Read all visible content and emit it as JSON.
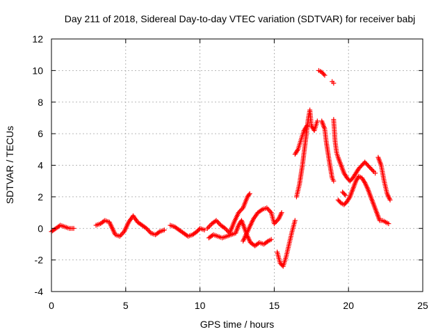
{
  "chart_data": {
    "type": "scatter",
    "title": "Day 211 of 2018, Sidereal Day-to-day VTEC variation (SDTVAR) for receiver babj",
    "xlabel": "GPS time / hours",
    "ylabel": "SDTVAR / TECUs",
    "xlim": [
      0,
      25
    ],
    "ylim": [
      -4,
      12
    ],
    "xticks": [
      0,
      5,
      10,
      15,
      20,
      25
    ],
    "yticks": [
      -4,
      -2,
      0,
      2,
      4,
      6,
      8,
      10,
      12
    ],
    "grid": true,
    "marker": "+",
    "marker_color": "#ff0000",
    "series": [
      {
        "name": "SDTVAR",
        "segments": [
          [
            [
              0.0,
              -0.2
            ],
            [
              0.3,
              0.0
            ],
            [
              0.6,
              0.2
            ],
            [
              0.9,
              0.1
            ],
            [
              1.2,
              0.0
            ],
            [
              1.5,
              0.0
            ]
          ],
          [
            [
              3.0,
              0.2
            ],
            [
              3.3,
              0.3
            ],
            [
              3.6,
              0.5
            ],
            [
              3.9,
              0.4
            ],
            [
              4.1,
              0.0
            ],
            [
              4.3,
              -0.4
            ],
            [
              4.6,
              -0.5
            ],
            [
              4.9,
              -0.2
            ],
            [
              5.2,
              0.4
            ],
            [
              5.5,
              0.8
            ],
            [
              5.8,
              0.4
            ],
            [
              6.1,
              0.2
            ],
            [
              6.4,
              0.0
            ],
            [
              6.7,
              -0.3
            ],
            [
              7.0,
              -0.4
            ],
            [
              7.3,
              -0.2
            ],
            [
              7.6,
              -0.1
            ]
          ],
          [
            [
              8.0,
              0.2
            ],
            [
              8.3,
              0.1
            ],
            [
              8.6,
              -0.1
            ],
            [
              8.9,
              -0.3
            ],
            [
              9.2,
              -0.5
            ],
            [
              9.5,
              -0.4
            ],
            [
              9.8,
              -0.2
            ],
            [
              10.0,
              0.0
            ],
            [
              10.3,
              -0.1
            ]
          ],
          [
            [
              10.5,
              0.0
            ],
            [
              10.8,
              0.3
            ],
            [
              11.1,
              0.5
            ],
            [
              11.4,
              0.2
            ],
            [
              11.7,
              0.0
            ],
            [
              12.0,
              -0.3
            ],
            [
              12.3,
              0.4
            ],
            [
              12.6,
              1.0
            ],
            [
              12.9,
              1.3
            ],
            [
              13.2,
              2.0
            ],
            [
              13.35,
              2.2
            ]
          ],
          [
            [
              10.6,
              -0.6
            ],
            [
              10.9,
              -0.4
            ],
            [
              11.2,
              -0.5
            ],
            [
              11.5,
              -0.6
            ],
            [
              11.8,
              -0.5
            ],
            [
              12.1,
              -0.4
            ],
            [
              12.4,
              -0.3
            ],
            [
              12.6,
              0.2
            ],
            [
              12.8,
              0.5
            ],
            [
              13.0,
              0.0
            ],
            [
              13.2,
              -0.5
            ],
            [
              13.4,
              -0.9
            ],
            [
              13.7,
              -1.1
            ],
            [
              14.0,
              -0.9
            ],
            [
              14.3,
              -1.0
            ],
            [
              14.6,
              -0.8
            ],
            [
              14.8,
              -0.7
            ]
          ],
          [
            [
              12.9,
              -0.8
            ],
            [
              13.1,
              -0.4
            ],
            [
              13.3,
              0.0
            ],
            [
              13.6,
              0.6
            ],
            [
              13.9,
              1.0
            ],
            [
              14.2,
              1.2
            ],
            [
              14.5,
              1.3
            ],
            [
              14.8,
              1.0
            ],
            [
              15.0,
              0.3
            ],
            [
              15.3,
              0.6
            ],
            [
              15.5,
              1.0
            ]
          ],
          [
            [
              15.2,
              -1.5
            ],
            [
              15.4,
              -2.2
            ],
            [
              15.6,
              -2.4
            ],
            [
              15.8,
              -1.8
            ],
            [
              16.0,
              -1.0
            ],
            [
              16.2,
              -0.2
            ],
            [
              16.4,
              0.5
            ]
          ],
          [
            [
              16.5,
              2.0
            ],
            [
              16.7,
              2.8
            ],
            [
              16.9,
              4.0
            ],
            [
              17.1,
              5.5
            ],
            [
              17.3,
              7.0
            ],
            [
              17.4,
              7.5
            ],
            [
              17.5,
              6.5
            ],
            [
              17.7,
              6.2
            ],
            [
              17.9,
              6.8
            ]
          ],
          [
            [
              16.4,
              4.7
            ],
            [
              16.6,
              5.0
            ],
            [
              16.8,
              5.6
            ],
            [
              17.0,
              6.2
            ],
            [
              17.2,
              6.5
            ]
          ],
          [
            [
              18.0,
              10.0
            ],
            [
              18.2,
              9.9
            ],
            [
              18.4,
              9.7
            ]
          ],
          [
            [
              18.9,
              9.3
            ],
            [
              19.0,
              9.2
            ]
          ],
          [
            [
              18.2,
              6.8
            ],
            [
              18.4,
              6.3
            ],
            [
              18.5,
              5.5
            ],
            [
              18.7,
              4.3
            ],
            [
              18.9,
              3.2
            ],
            [
              19.0,
              3.0
            ]
          ],
          [
            [
              19.0,
              6.9
            ],
            [
              19.1,
              5.5
            ],
            [
              19.2,
              4.8
            ],
            [
              19.3,
              4.5
            ],
            [
              19.5,
              4.0
            ],
            [
              19.7,
              3.5
            ],
            [
              19.9,
              3.2
            ],
            [
              20.1,
              3.0
            ],
            [
              20.3,
              3.2
            ],
            [
              20.5,
              3.5
            ],
            [
              20.7,
              3.8
            ],
            [
              20.9,
              4.0
            ],
            [
              21.1,
              4.2
            ],
            [
              21.3,
              4.0
            ],
            [
              21.5,
              3.8
            ],
            [
              21.7,
              3.6
            ],
            [
              21.8,
              3.5
            ]
          ],
          [
            [
              19.3,
              1.8
            ],
            [
              19.5,
              1.6
            ],
            [
              19.7,
              1.5
            ],
            [
              19.9,
              1.7
            ],
            [
              20.1,
              2.0
            ],
            [
              20.3,
              2.5
            ],
            [
              20.5,
              3.0
            ],
            [
              20.7,
              3.3
            ],
            [
              20.9,
              3.2
            ],
            [
              21.1,
              2.9
            ],
            [
              21.3,
              2.5
            ],
            [
              21.5,
              2.0
            ],
            [
              21.7,
              1.5
            ],
            [
              21.9,
              1.0
            ],
            [
              22.1,
              0.5
            ],
            [
              22.3,
              0.5
            ],
            [
              22.5,
              0.4
            ],
            [
              22.7,
              0.3
            ]
          ],
          [
            [
              19.6,
              2.3
            ],
            [
              19.8,
              2.1
            ]
          ],
          [
            [
              22.0,
              4.5
            ],
            [
              22.2,
              4.0
            ],
            [
              22.4,
              3.0
            ],
            [
              22.6,
              2.2
            ],
            [
              22.8,
              1.8
            ]
          ]
        ]
      }
    ]
  }
}
